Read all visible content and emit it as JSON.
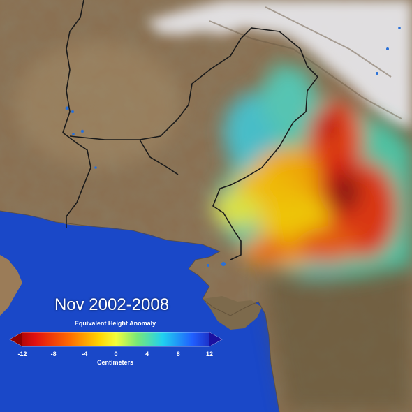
{
  "title": "Nov 2002-2008",
  "colorbar": {
    "label": "Equivalent Height Anomaly",
    "units": "Centimeters",
    "ticks": [
      "-12",
      "-8",
      "-4",
      "0",
      "4",
      "8",
      "12"
    ],
    "min": -12,
    "max": 12,
    "colors": [
      "#8b0000",
      "#e01010",
      "#ff6a00",
      "#ffd400",
      "#f4ff3a",
      "#78e878",
      "#20d0f0",
      "#2060ff",
      "#1a10a0"
    ]
  },
  "map": {
    "ocean_color": "#1a48c8",
    "land_color": "#8b7355",
    "snow_color": "#e8e8ec"
  }
}
